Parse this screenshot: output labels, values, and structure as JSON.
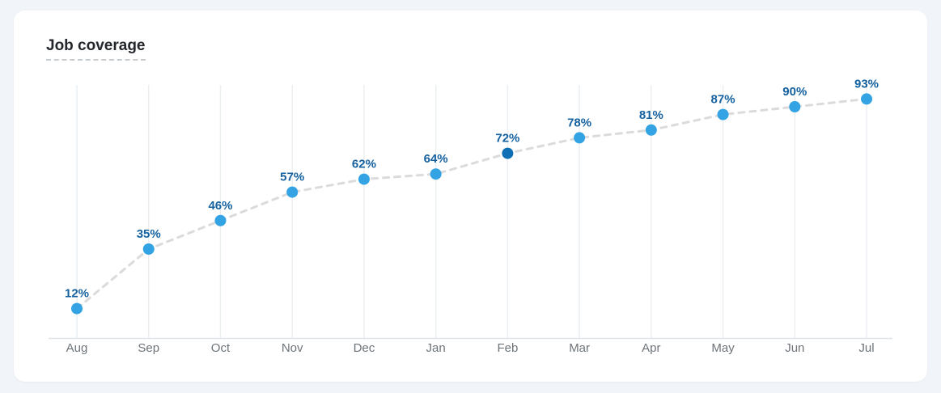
{
  "page": {
    "background": "#F1F4F8"
  },
  "card": {
    "background": "#FFFFFF"
  },
  "title": "Job coverage",
  "chart_data": {
    "type": "line",
    "title": "Job coverage",
    "categories": [
      "Aug",
      "Sep",
      "Oct",
      "Nov",
      "Dec",
      "Jan",
      "Feb",
      "Mar",
      "Apr",
      "May",
      "Jun",
      "Jul"
    ],
    "values": [
      12,
      35,
      46,
      57,
      62,
      64,
      72,
      78,
      81,
      87,
      90,
      93
    ],
    "unit": "%",
    "highlight_index": 6,
    "highlight_category": "Feb",
    "ylim": [
      0,
      100
    ],
    "grid": "vertical-only",
    "line_style": "dashed",
    "legend": "none",
    "xlabel": "",
    "ylabel": "",
    "colors": {
      "point": "#33A3E3",
      "point_highlight": "#0F6FB4",
      "line": "#DBDBDB",
      "value_label": "#15619F",
      "axis_label": "#6E7479",
      "gridline": "#EBEFF2",
      "axis_line": "#E0E3E7"
    }
  }
}
